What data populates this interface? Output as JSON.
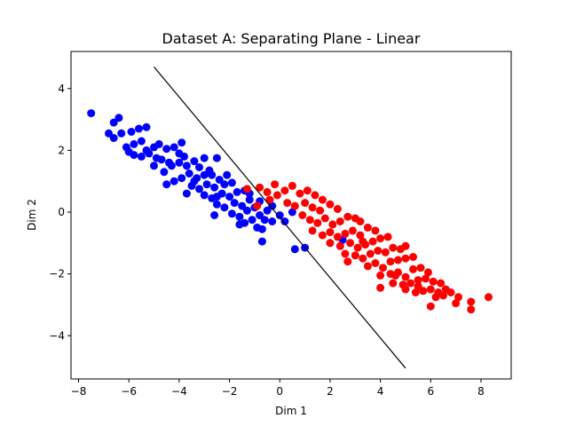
{
  "chart_data": {
    "type": "scatter",
    "title": "Dataset A: Separating Plane - Linear",
    "xlabel": "Dim 1",
    "ylabel": "Dim 2",
    "xlim": [
      -8.3,
      9.2
    ],
    "ylim": [
      -5.4,
      5.2
    ],
    "xticks": [
      -8,
      -6,
      -4,
      -2,
      0,
      2,
      4,
      6,
      8
    ],
    "yticks": [
      -4,
      -2,
      0,
      2,
      4
    ],
    "grid": false,
    "legend": "none",
    "series": [
      {
        "color": "#0000ff",
        "points": [
          [
            -7.5,
            3.2
          ],
          [
            -6.4,
            3.05
          ],
          [
            -6.6,
            2.9
          ],
          [
            -6.3,
            2.55
          ],
          [
            -6.8,
            2.55
          ],
          [
            -6.6,
            2.4
          ],
          [
            -5.9,
            2.6
          ],
          [
            -5.6,
            2.7
          ],
          [
            -5.3,
            2.75
          ],
          [
            -5.5,
            2.3
          ],
          [
            -5.8,
            2.2
          ],
          [
            -6.1,
            2.1
          ],
          [
            -6.0,
            1.95
          ],
          [
            -5.8,
            1.85
          ],
          [
            -5.5,
            1.8
          ],
          [
            -5.2,
            1.9
          ],
          [
            -5.0,
            2.1
          ],
          [
            -4.8,
            2.2
          ],
          [
            -4.5,
            2.05
          ],
          [
            -4.2,
            2.1
          ],
          [
            -3.9,
            2.25
          ],
          [
            -4.0,
            1.9
          ],
          [
            -4.7,
            1.7
          ],
          [
            -5.0,
            1.5
          ],
          [
            -4.6,
            1.3
          ],
          [
            -4.3,
            1.5
          ],
          [
            -4.0,
            1.6
          ],
          [
            -3.7,
            1.5
          ],
          [
            -3.4,
            1.65
          ],
          [
            -3.2,
            1.45
          ],
          [
            -3.0,
            1.75
          ],
          [
            -2.5,
            1.75
          ],
          [
            -3.6,
            1.25
          ],
          [
            -3.9,
            1.1
          ],
          [
            -4.2,
            1.0
          ],
          [
            -4.5,
            0.9
          ],
          [
            -3.3,
            1.1
          ],
          [
            -3.0,
            1.2
          ],
          [
            -2.7,
            1.2
          ],
          [
            -2.4,
            1.05
          ],
          [
            -3.5,
            0.85
          ],
          [
            -3.2,
            0.75
          ],
          [
            -2.9,
            0.9
          ],
          [
            -2.6,
            0.8
          ],
          [
            -2.2,
            0.9
          ],
          [
            -1.9,
            0.95
          ],
          [
            -3.7,
            0.6
          ],
          [
            -3.0,
            0.55
          ],
          [
            -2.7,
            0.45
          ],
          [
            -2.3,
            0.6
          ],
          [
            -2.0,
            0.5
          ],
          [
            -1.7,
            0.65
          ],
          [
            -1.4,
            0.7
          ],
          [
            -2.5,
            0.25
          ],
          [
            -2.2,
            0.15
          ],
          [
            -1.8,
            0.3
          ],
          [
            -1.5,
            0.2
          ],
          [
            -1.2,
            0.4
          ],
          [
            -2.6,
            -0.1
          ],
          [
            -1.9,
            -0.05
          ],
          [
            -1.6,
            -0.15
          ],
          [
            -1.3,
            0.05
          ],
          [
            -1.0,
            0.15
          ],
          [
            -0.8,
            0.35
          ],
          [
            -1.4,
            -0.35
          ],
          [
            -1.1,
            -0.25
          ],
          [
            -0.8,
            -0.1
          ],
          [
            -0.5,
            0.05
          ],
          [
            -0.3,
            0.2
          ],
          [
            -1.6,
            -0.4
          ],
          [
            -0.9,
            -0.5
          ],
          [
            -0.6,
            -0.25
          ],
          [
            -0.3,
            -0.3
          ],
          [
            0.0,
            -0.1
          ],
          [
            0.2,
            -0.3
          ],
          [
            -0.7,
            -0.55
          ],
          [
            -0.7,
            -0.95
          ],
          [
            0.5,
            0.0
          ],
          [
            0.6,
            -1.2
          ],
          [
            1.0,
            -1.15
          ],
          [
            2.5,
            -0.9
          ],
          [
            -3.8,
            1.8
          ],
          [
            -4.4,
            1.6
          ],
          [
            -3.4,
            1.0
          ],
          [
            -2.8,
            1.35
          ],
          [
            -2.1,
            1.2
          ],
          [
            -5.3,
            2.0
          ],
          [
            -4.9,
            1.75
          ],
          [
            -2.5,
            0.5
          ],
          [
            -1.2,
            0.6
          ]
        ]
      },
      {
        "color": "#ff0000",
        "points": [
          [
            -1.3,
            0.75
          ],
          [
            -0.8,
            0.8
          ],
          [
            -0.5,
            0.65
          ],
          [
            -0.2,
            0.9
          ],
          [
            -0.1,
            0.55
          ],
          [
            0.2,
            0.7
          ],
          [
            0.5,
            0.85
          ],
          [
            0.8,
            0.6
          ],
          [
            1.1,
            0.7
          ],
          [
            1.4,
            0.55
          ],
          [
            1.7,
            0.4
          ],
          [
            0.3,
            0.3
          ],
          [
            0.6,
            0.2
          ],
          [
            1.0,
            0.3
          ],
          [
            1.3,
            0.15
          ],
          [
            1.6,
            0.05
          ],
          [
            2.0,
            0.25
          ],
          [
            2.3,
            0.1
          ],
          [
            0.9,
            -0.1
          ],
          [
            1.2,
            -0.25
          ],
          [
            1.5,
            -0.35
          ],
          [
            1.8,
            -0.2
          ],
          [
            2.1,
            -0.4
          ],
          [
            2.4,
            -0.3
          ],
          [
            2.7,
            -0.15
          ],
          [
            3.0,
            -0.2
          ],
          [
            3.2,
            -0.3
          ],
          [
            1.3,
            -0.6
          ],
          [
            1.7,
            -0.75
          ],
          [
            2.0,
            -0.65
          ],
          [
            2.3,
            -0.8
          ],
          [
            2.6,
            -0.7
          ],
          [
            2.9,
            -0.6
          ],
          [
            3.2,
            -0.75
          ],
          [
            3.5,
            -0.5
          ],
          [
            3.8,
            -0.6
          ],
          [
            2.0,
            -1.0
          ],
          [
            2.4,
            -1.1
          ],
          [
            2.8,
            -1.0
          ],
          [
            3.1,
            -1.15
          ],
          [
            3.4,
            -1.05
          ],
          [
            3.7,
            -0.95
          ],
          [
            4.0,
            -0.85
          ],
          [
            4.3,
            -0.8
          ],
          [
            2.6,
            -1.35
          ],
          [
            3.0,
            -1.4
          ],
          [
            3.3,
            -1.5
          ],
          [
            3.6,
            -1.35
          ],
          [
            3.9,
            -1.25
          ],
          [
            4.2,
            -1.3
          ],
          [
            4.5,
            -1.15
          ],
          [
            4.8,
            -1.2
          ],
          [
            5.0,
            -1.1
          ],
          [
            3.5,
            -1.75
          ],
          [
            3.8,
            -1.65
          ],
          [
            4.1,
            -1.8
          ],
          [
            4.4,
            -1.6
          ],
          [
            4.7,
            -1.55
          ],
          [
            5.0,
            -1.5
          ],
          [
            5.3,
            -1.45
          ],
          [
            4.0,
            -2.05
          ],
          [
            4.4,
            -2.0
          ],
          [
            4.7,
            -1.95
          ],
          [
            5.0,
            -2.1
          ],
          [
            5.3,
            -1.85
          ],
          [
            5.6,
            -1.8
          ],
          [
            5.9,
            -1.95
          ],
          [
            4.5,
            -2.3
          ],
          [
            4.9,
            -2.35
          ],
          [
            5.2,
            -2.3
          ],
          [
            5.5,
            -2.2
          ],
          [
            5.8,
            -2.15
          ],
          [
            6.1,
            -2.25
          ],
          [
            6.4,
            -2.3
          ],
          [
            5.0,
            -2.5
          ],
          [
            5.7,
            -2.55
          ],
          [
            6.0,
            -2.5
          ],
          [
            6.3,
            -2.6
          ],
          [
            6.6,
            -2.5
          ],
          [
            6.8,
            -2.6
          ],
          [
            4.0,
            -2.45
          ],
          [
            5.4,
            -2.6
          ],
          [
            6.2,
            -2.75
          ],
          [
            6.5,
            -2.7
          ],
          [
            6.0,
            -3.05
          ],
          [
            7.0,
            -2.95
          ],
          [
            7.6,
            -2.9
          ],
          [
            7.6,
            -3.15
          ],
          [
            8.3,
            -2.75
          ],
          [
            7.1,
            -2.75
          ],
          [
            -0.9,
            0.2
          ],
          [
            -0.4,
            0.4
          ],
          [
            2.7,
            -1.6
          ],
          [
            3.3,
            -0.95
          ],
          [
            4.6,
            -2.05
          ],
          [
            5.5,
            -2.4
          ]
        ]
      }
    ],
    "decision_line": {
      "color": "#000000",
      "points": [
        [
          -5.0,
          4.7
        ],
        [
          5.0,
          -5.05
        ]
      ]
    }
  }
}
